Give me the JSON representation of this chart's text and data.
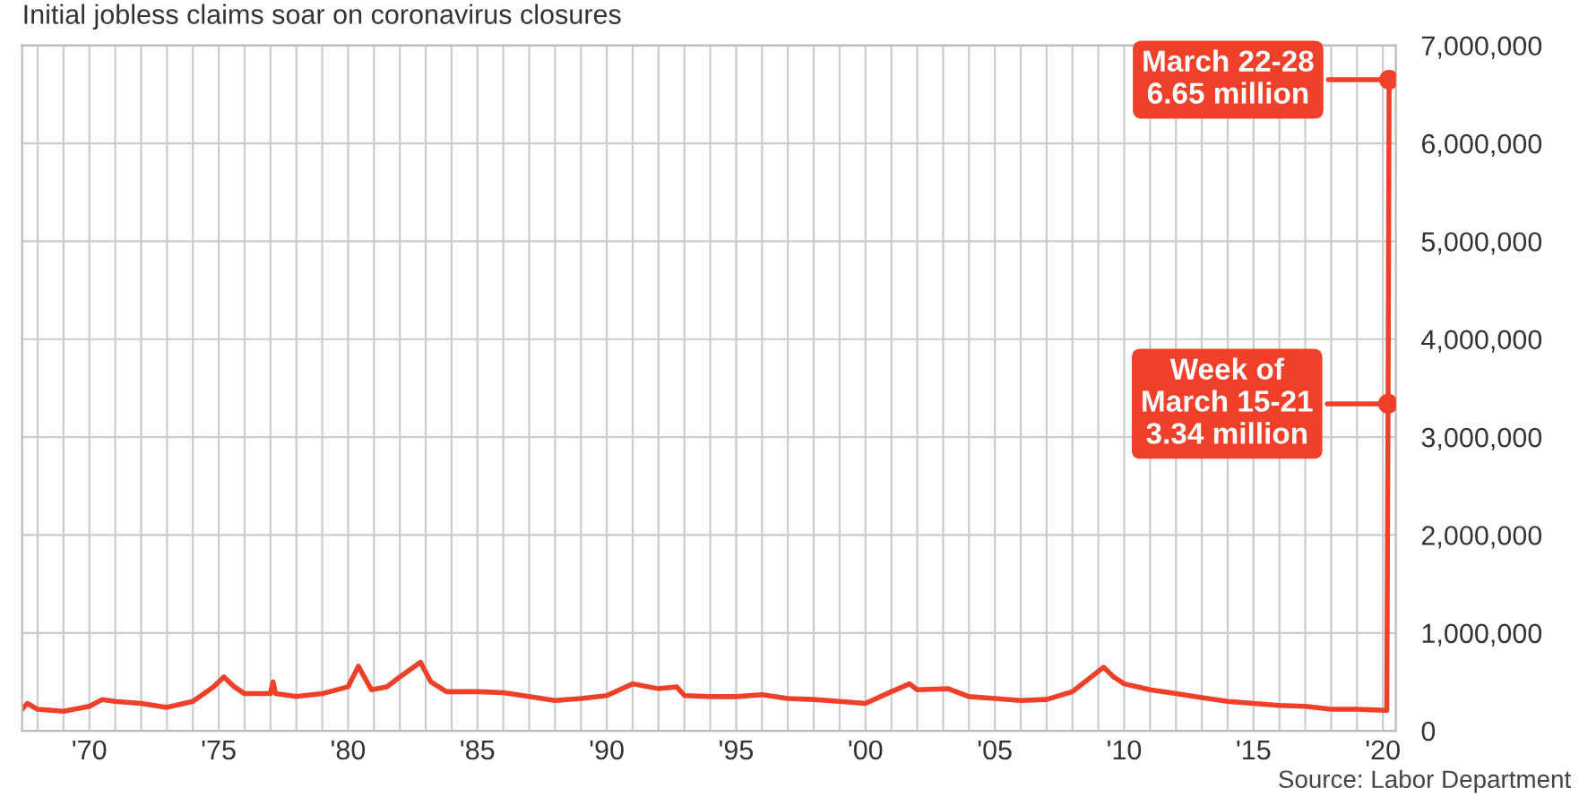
{
  "chart_data": {
    "type": "line",
    "title": "Initial jobless claims soar on coronavirus closures",
    "x": [
      1967.4,
      1967.6,
      1968,
      1969,
      1970,
      1970.5,
      1971,
      1972,
      1973,
      1974,
      1974.8,
      1975.2,
      1975.6,
      1976,
      1977,
      1977.1,
      1977.2,
      1978,
      1979,
      1980,
      1980.4,
      1980.9,
      1981.5,
      1982,
      1982.8,
      1983.2,
      1983.8,
      1985,
      1986,
      1987,
      1988,
      1989,
      1990,
      1991,
      1992,
      1992.7,
      1993,
      1994,
      1995,
      1996,
      1997,
      1998,
      1999,
      2000,
      2001,
      2001.7,
      2002,
      2003.2,
      2004,
      2005,
      2006,
      2007,
      2008,
      2009.2,
      2009.6,
      2010,
      2011,
      2012,
      2013,
      2014,
      2015,
      2016,
      2017,
      2018,
      2019,
      2020.15,
      2020.2,
      2020.24
    ],
    "series": [
      {
        "color": "#f0402a",
        "values": [
          220000,
          280000,
          220000,
          200000,
          250000,
          320000,
          300000,
          280000,
          240000,
          300000,
          450000,
          550000,
          450000,
          380000,
          380000,
          500000,
          380000,
          350000,
          380000,
          450000,
          660000,
          420000,
          450000,
          550000,
          700000,
          500000,
          400000,
          400000,
          390000,
          350000,
          310000,
          330000,
          360000,
          480000,
          430000,
          450000,
          360000,
          350000,
          350000,
          370000,
          330000,
          320000,
          300000,
          280000,
          400000,
          480000,
          420000,
          430000,
          350000,
          330000,
          310000,
          320000,
          400000,
          650000,
          550000,
          480000,
          420000,
          380000,
          340000,
          300000,
          280000,
          260000,
          250000,
          220000,
          220000,
          210000,
          3340000,
          6650000
        ]
      }
    ],
    "xlim": [
      1967.4,
      2020.5
    ],
    "xticks": [
      {
        "value": 1968,
        "label": null
      },
      {
        "value": 1969,
        "label": null
      },
      {
        "value": 1970,
        "label": "'70"
      },
      {
        "value": 1971,
        "label": null
      },
      {
        "value": 1972,
        "label": null
      },
      {
        "value": 1973,
        "label": null
      },
      {
        "value": 1974,
        "label": null
      },
      {
        "value": 1975,
        "label": "'75"
      },
      {
        "value": 1976,
        "label": null
      },
      {
        "value": 1977,
        "label": null
      },
      {
        "value": 1978,
        "label": null
      },
      {
        "value": 1979,
        "label": null
      },
      {
        "value": 1980,
        "label": "'80"
      },
      {
        "value": 1981,
        "label": null
      },
      {
        "value": 1982,
        "label": null
      },
      {
        "value": 1983,
        "label": null
      },
      {
        "value": 1984,
        "label": null
      },
      {
        "value": 1985,
        "label": "'85"
      },
      {
        "value": 1986,
        "label": null
      },
      {
        "value": 1987,
        "label": null
      },
      {
        "value": 1988,
        "label": null
      },
      {
        "value": 1989,
        "label": null
      },
      {
        "value": 1990,
        "label": "'90"
      },
      {
        "value": 1991,
        "label": null
      },
      {
        "value": 1992,
        "label": null
      },
      {
        "value": 1993,
        "label": null
      },
      {
        "value": 1994,
        "label": null
      },
      {
        "value": 1995,
        "label": "'95"
      },
      {
        "value": 1996,
        "label": null
      },
      {
        "value": 1997,
        "label": null
      },
      {
        "value": 1998,
        "label": null
      },
      {
        "value": 1999,
        "label": null
      },
      {
        "value": 2000,
        "label": "'00"
      },
      {
        "value": 2001,
        "label": null
      },
      {
        "value": 2002,
        "label": null
      },
      {
        "value": 2003,
        "label": null
      },
      {
        "value": 2004,
        "label": null
      },
      {
        "value": 2005,
        "label": "'05"
      },
      {
        "value": 2006,
        "label": null
      },
      {
        "value": 2007,
        "label": null
      },
      {
        "value": 2008,
        "label": null
      },
      {
        "value": 2009,
        "label": null
      },
      {
        "value": 2010,
        "label": "'10"
      },
      {
        "value": 2011,
        "label": null
      },
      {
        "value": 2012,
        "label": null
      },
      {
        "value": 2013,
        "label": null
      },
      {
        "value": 2014,
        "label": null
      },
      {
        "value": 2015,
        "label": "'15"
      },
      {
        "value": 2016,
        "label": null
      },
      {
        "value": 2017,
        "label": null
      },
      {
        "value": 2018,
        "label": null
      },
      {
        "value": 2019,
        "label": null
      },
      {
        "value": 2020,
        "label": "'20"
      }
    ],
    "ylim": [
      0,
      7000000
    ],
    "yticks": [
      {
        "value": 0,
        "label": "0"
      },
      {
        "value": 1000000,
        "label": "1,000,000"
      },
      {
        "value": 2000000,
        "label": "2,000,000"
      },
      {
        "value": 3000000,
        "label": "3,000,000"
      },
      {
        "value": 4000000,
        "label": "4,000,000"
      },
      {
        "value": 5000000,
        "label": "5,000,000"
      },
      {
        "value": 6000000,
        "label": "6,000,000"
      },
      {
        "value": 7000000,
        "label": "7,000,000"
      }
    ],
    "grid": true,
    "annotations": [
      {
        "text": "March 22-28\n6.65 million",
        "x": 2020.24,
        "y": 6650000
      },
      {
        "text": "Week of\nMarch 15-21\n3.34 million",
        "x": 2020.2,
        "y": 3340000
      },
      "Source: Labor Department"
    ]
  }
}
